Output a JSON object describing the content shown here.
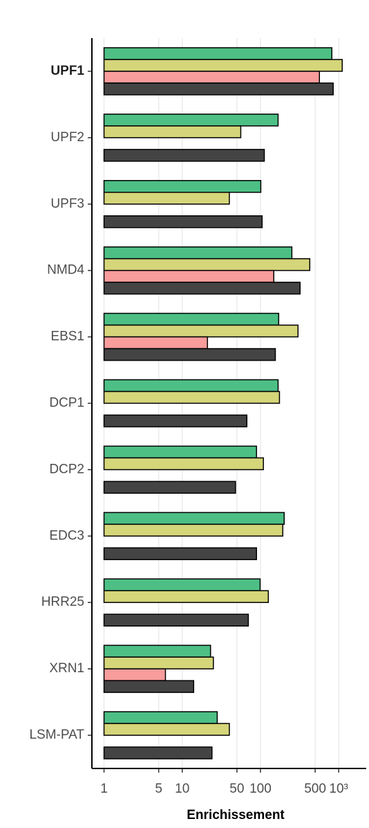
{
  "chart_data": {
    "type": "bar",
    "orientation": "horizontal",
    "xscale": "log",
    "grid": true,
    "xlabel": "Enrichissement",
    "categories": [
      "UPF1",
      "UPF2",
      "UPF3",
      "NMD4",
      "EBS1",
      "DCP1",
      "DCP2",
      "EDC3",
      "HRR25",
      "XRN1",
      "LSM-PAT"
    ],
    "bold_categories": [
      "UPF1"
    ],
    "series": [
      {
        "color": "#4dbf85",
        "values": [
          818,
          168,
          101,
          252,
          171,
          168,
          89,
          201,
          99,
          23,
          28
        ]
      },
      {
        "color": "#d5d57a",
        "values": [
          1109,
          56,
          40,
          427,
          302,
          175,
          109,
          193,
          126,
          25,
          40
        ]
      },
      {
        "color": "#f89c9c",
        "values": [
          567,
          null,
          null,
          148,
          21,
          null,
          null,
          null,
          null,
          6.1,
          null
        ]
      },
      {
        "color": "#444444",
        "values": [
          851,
          112,
          105,
          321,
          155,
          67,
          48,
          89,
          70,
          14,
          24
        ]
      }
    ],
    "xlim": [
      0.7,
      2250
    ],
    "xticks": [
      1,
      5,
      10,
      50,
      100,
      500,
      {
        "value": 1000,
        "label": "10³"
      }
    ]
  }
}
